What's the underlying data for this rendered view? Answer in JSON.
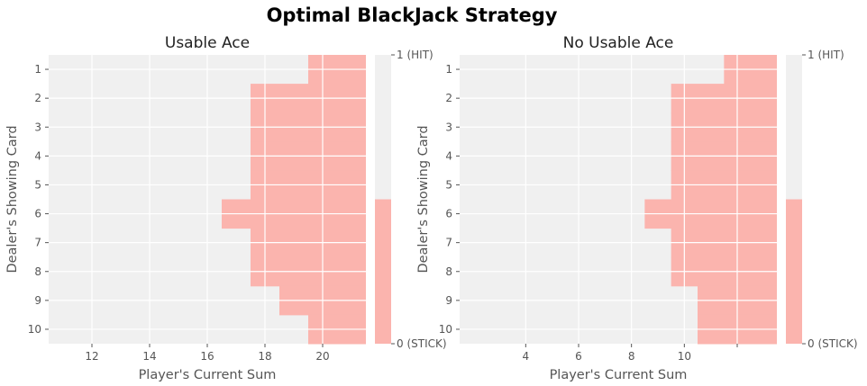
{
  "suptitle": "Optimal BlackJack Strategy",
  "colors": {
    "hit": "#f0f0f0",
    "stick": "#fbb4ae",
    "panel": "#f0f0f0",
    "grid": "#ffffff"
  },
  "colorbar": {
    "ticks": [
      {
        "value": 1,
        "label": "1 (HIT)"
      },
      {
        "value": 0,
        "label": "0 (STICK)"
      }
    ]
  },
  "chart_data": [
    {
      "type": "heatmap",
      "title": "Usable Ace",
      "xlabel": "Player's Current Sum",
      "ylabel": "Dealer's Showing Card",
      "x_range": [
        11,
        21
      ],
      "x_ticks": [
        "12",
        "14",
        "16",
        "18",
        "20"
      ],
      "y_categories": [
        "1",
        "2",
        "3",
        "4",
        "5",
        "6",
        "7",
        "8",
        "9",
        "10"
      ],
      "values_legend": "1 = HIT, 0 = STICK",
      "stick_from_sum_by_dealer": [
        20,
        18,
        18,
        18,
        18,
        17,
        18,
        18,
        19,
        20
      ]
    },
    {
      "type": "heatmap",
      "title": "No Usable Ace",
      "xlabel": "Player's Current Sum",
      "ylabel": "Dealer's Showing Card",
      "x_range": [
        2,
        13
      ],
      "x_ticks": [
        "4",
        "6",
        "8",
        "10",
        ""
      ],
      "y_categories": [
        "1",
        "2",
        "3",
        "4",
        "5",
        "6",
        "7",
        "8",
        "9",
        "10"
      ],
      "values_legend": "1 = HIT, 0 = STICK",
      "stick_from_sum_by_dealer": [
        12,
        10,
        10,
        10,
        10,
        9,
        10,
        10,
        11,
        11
      ]
    }
  ]
}
